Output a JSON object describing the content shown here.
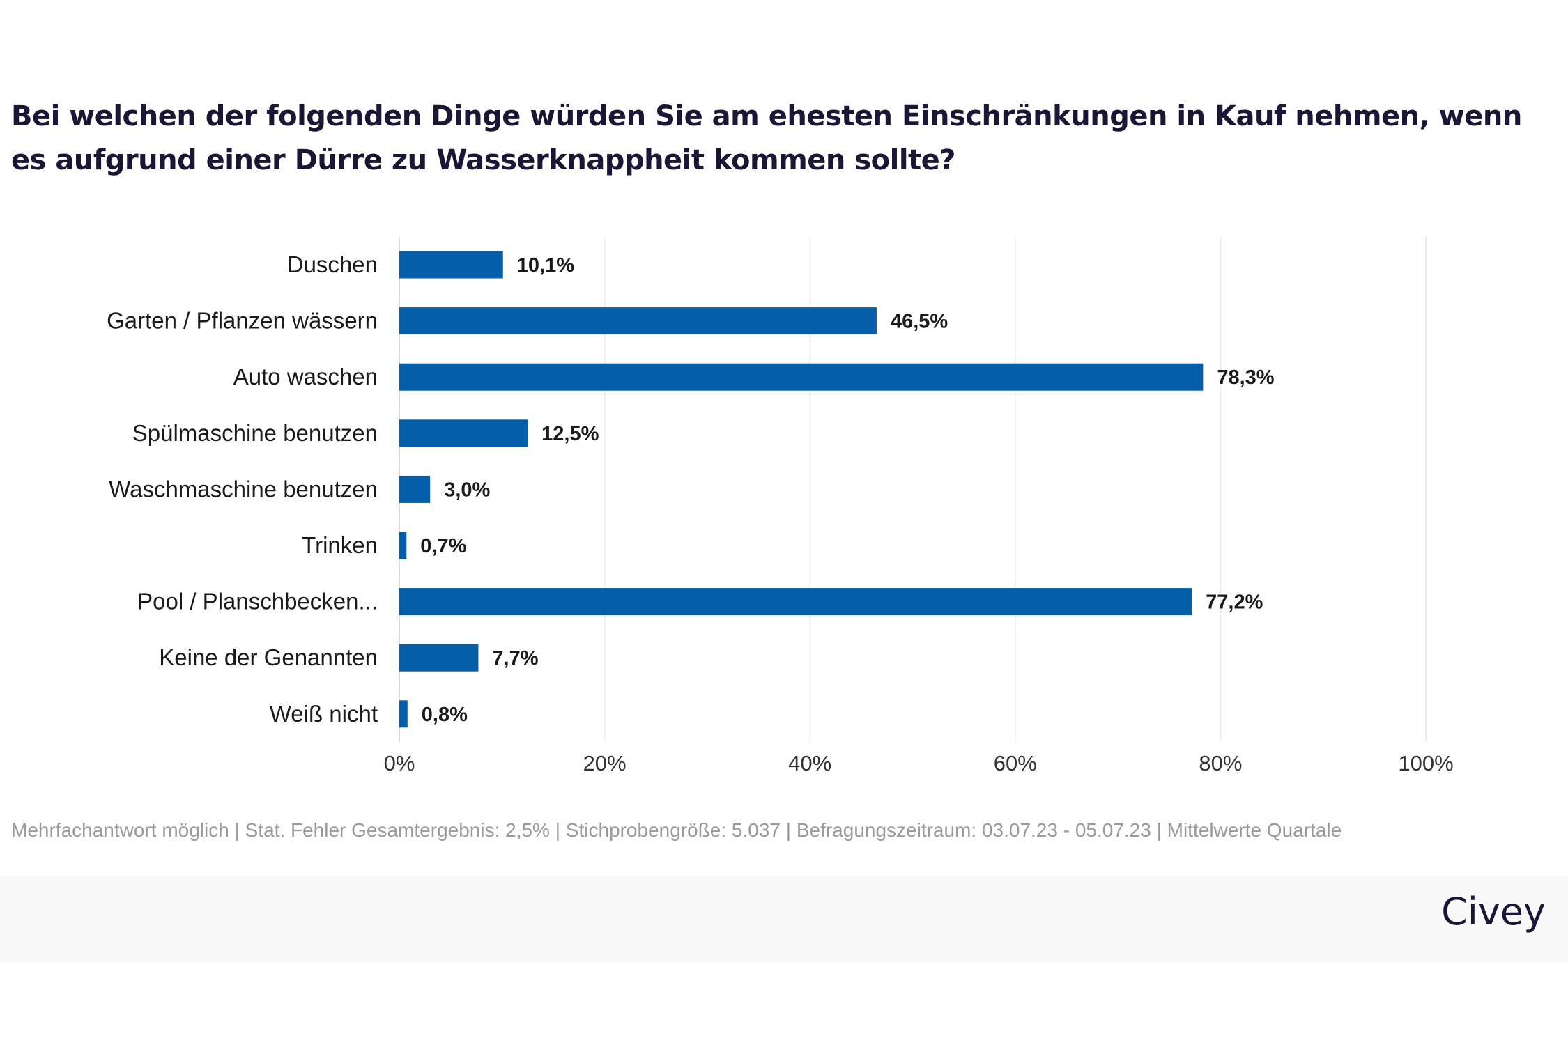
{
  "title": "Bei welchen der folgenden Dinge würden Sie am ehesten Einschränkungen in Kauf nehmen, wenn es aufgrund einer Dürre zu Wasserknappheit kommen sollte?",
  "footnote": "Mehrfachantwort möglich | Stat. Fehler Gesamtergebnis: 2,5% | Stichprobengröße: 5.037 | Befragungszeitraum: 03.07.23 - 05.07.23 | Mittelwerte Quartale",
  "logo": "Civey",
  "chart_data": {
    "type": "bar",
    "orientation": "horizontal",
    "categories": [
      "Duschen",
      "Garten / Pflanzen wässern",
      "Auto waschen",
      "Spülmaschine benutzen",
      "Waschmaschine benutzen",
      "Trinken",
      "Pool / Planschbecken...",
      "Keine der Genannten",
      "Weiß nicht"
    ],
    "values": [
      10.1,
      46.5,
      78.3,
      12.5,
      3.0,
      0.7,
      77.2,
      7.7,
      0.8
    ],
    "value_labels": [
      "10,1%",
      "46,5%",
      "78,3%",
      "12,5%",
      "3,0%",
      "0,7%",
      "77,2%",
      "7,7%",
      "0,8%"
    ],
    "xlim": [
      0,
      100
    ],
    "xticks": [
      0,
      20,
      40,
      60,
      80,
      100
    ],
    "xtick_labels": [
      "0%",
      "20%",
      "40%",
      "60%",
      "80%",
      "100%"
    ],
    "grid": true,
    "bar_color": "#045ea8"
  }
}
